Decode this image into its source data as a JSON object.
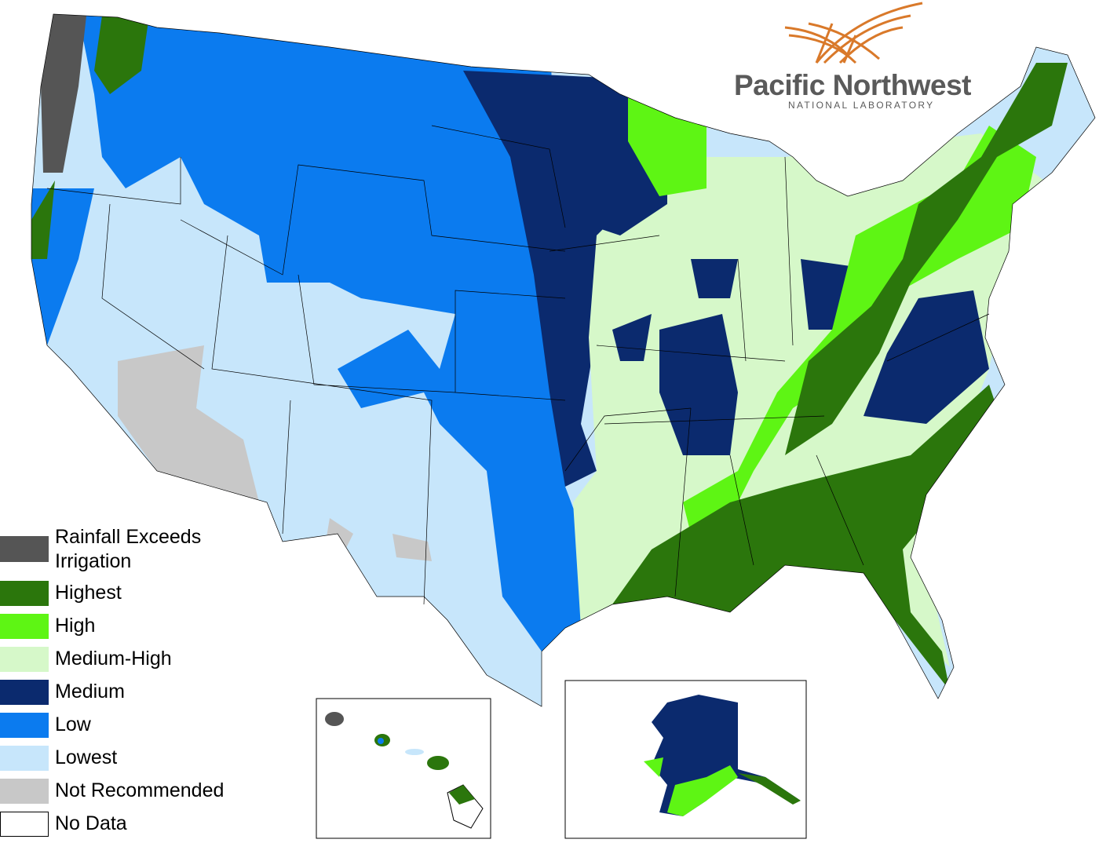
{
  "logo": {
    "name": "Pacific Northwest",
    "subtitle": "NATIONAL LABORATORY"
  },
  "legend": [
    {
      "label": "Rainfall Exceeds Irrigation",
      "color": "#555555"
    },
    {
      "label": "Highest",
      "color": "#2b760c"
    },
    {
      "label": "High",
      "color": "#5ef514"
    },
    {
      "label": "Medium-High",
      "color": "#d6f8c9"
    },
    {
      "label": "Medium",
      "color": "#0b2a6e"
    },
    {
      "label": "Low",
      "color": "#0b7bef"
    },
    {
      "label": "Lowest",
      "color": "#c7e6fb"
    },
    {
      "label": "Not Recommended",
      "color": "#c8c8c8"
    },
    {
      "label": "No Data",
      "color": "#ffffff"
    }
  ]
}
